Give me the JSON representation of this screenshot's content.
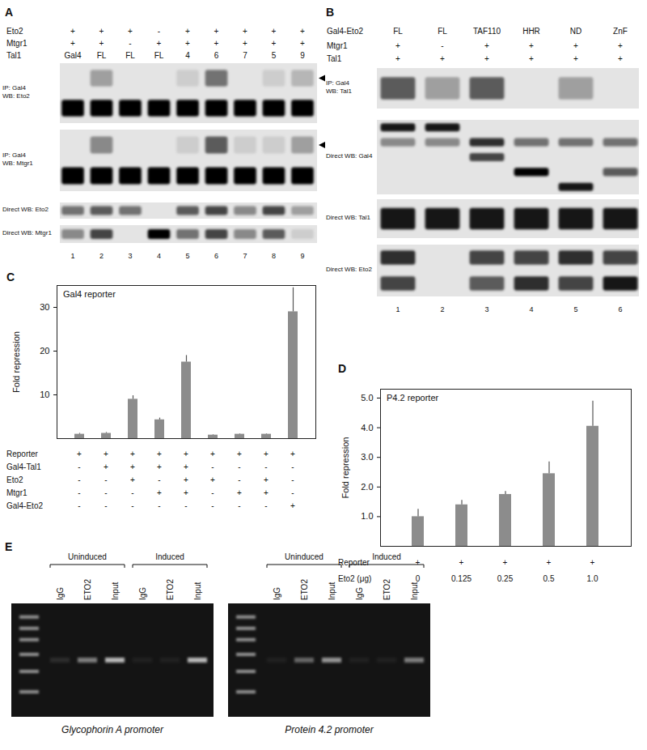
{
  "panels": {
    "A": {
      "letter": "A",
      "header": [
        {
          "label": "Eto2",
          "values": [
            "+",
            "+",
            "+",
            "-",
            "+",
            "+",
            "+",
            "+",
            "+"
          ]
        },
        {
          "label": "Mtgr1",
          "values": [
            "+",
            "+",
            "-",
            "+",
            "+",
            "+",
            "+",
            "+",
            "+"
          ]
        },
        {
          "label": "Tal1",
          "values": [
            "Gal4",
            "FL",
            "FL",
            "FL",
            "4",
            "6",
            "7",
            "5",
            "9"
          ]
        }
      ],
      "blots": [
        {
          "label": [
            "IP: Gal4",
            "WB: Eto2"
          ],
          "arrow": true,
          "bands": [
            [
              0,
              0.3,
              0,
              0,
              0.1,
              0.5,
              0,
              0.1,
              0.2
            ],
            [
              1,
              1,
              1,
              1,
              1,
              1,
              1,
              1,
              1
            ]
          ]
        },
        {
          "label": [
            "IP: Gal4",
            "WB: Mtgr1"
          ],
          "arrow": true,
          "bands": [
            [
              0,
              0.4,
              0,
              0,
              0.1,
              0.6,
              0.1,
              0.1,
              0.3
            ],
            [
              1,
              1,
              1,
              1,
              1,
              1,
              1,
              1,
              1
            ]
          ]
        },
        {
          "label": [
            "Direct WB: Eto2"
          ],
          "arrow": false,
          "bands": [
            [
              0.5,
              0.6,
              0.5,
              0,
              0.6,
              0.7,
              0.4,
              0.7,
              0.3
            ]
          ]
        },
        {
          "label": [
            "Direct WB: Mtgr1"
          ],
          "arrow": false,
          "bands": [
            [
              0.4,
              0.7,
              0,
              1,
              0.5,
              0.7,
              0.4,
              0.6,
              0.1
            ]
          ]
        }
      ],
      "lanes": [
        1,
        2,
        3,
        4,
        5,
        6,
        7,
        8,
        9
      ]
    },
    "B": {
      "letter": "B",
      "header": [
        {
          "label": "Gal4-Eto2",
          "values": [
            "FL",
            "FL",
            "TAF110",
            "HHR",
            "ND",
            "ZnF"
          ]
        },
        {
          "label": "Mtgr1",
          "values": [
            "+",
            "-",
            "+",
            "+",
            "+",
            "+"
          ]
        },
        {
          "label": "Tal1",
          "values": [
            "+",
            "+",
            "+",
            "+",
            "+",
            "+"
          ]
        }
      ],
      "blots": [
        {
          "label": [
            "IP: Gal4",
            "WB: Tal1"
          ],
          "arrow": false,
          "bands": [
            [
              0.6,
              0.3,
              0.6,
              0,
              0.3,
              0
            ]
          ]
        },
        {
          "label": [
            "Direct WB: Gal4"
          ],
          "arrow": false,
          "bands": [
            [
              0.9,
              0.9,
              0,
              0,
              0,
              0
            ],
            [
              0.4,
              0.4,
              0.8,
              0.5,
              0.5,
              0.5
            ],
            [
              0,
              0,
              0.7,
              0,
              0,
              0
            ],
            [
              0,
              0,
              0,
              1,
              0,
              0.6
            ],
            [
              0,
              0,
              0,
              0,
              0.9,
              0
            ]
          ]
        },
        {
          "label": [
            "Direct WB: Tal1"
          ],
          "arrow": false,
          "bands": [
            [
              0.9,
              0.9,
              0.9,
              0.9,
              0.9,
              0.9
            ]
          ]
        },
        {
          "label": [
            "Direct WB: Eto2"
          ],
          "arrow": false,
          "bands": [
            [
              0.8,
              0,
              0.7,
              0.7,
              0.8,
              0.7
            ],
            [
              0.7,
              0,
              0.6,
              0.8,
              0.7,
              0.9
            ]
          ]
        }
      ],
      "lanes": [
        1,
        2,
        3,
        4,
        5,
        6
      ]
    },
    "C": {
      "letter": "C",
      "rows": [
        {
          "label": "Reporter",
          "values": [
            "+",
            "+",
            "+",
            "+",
            "+",
            "+",
            "+",
            "+",
            "+"
          ]
        },
        {
          "label": "Gal4-Tal1",
          "values": [
            "-",
            "+",
            "+",
            "+",
            "+",
            "-",
            "-",
            "-",
            "-"
          ]
        },
        {
          "label": "Eto2",
          "values": [
            "-",
            "-",
            "+",
            "-",
            "+",
            "+",
            "-",
            "+",
            "-"
          ]
        },
        {
          "label": "Mtgr1",
          "values": [
            "-",
            "-",
            "-",
            "+",
            "+",
            "-",
            "+",
            "+",
            "-"
          ]
        },
        {
          "label": "Gal4-Eto2",
          "values": [
            "-",
            "-",
            "-",
            "-",
            "-",
            "-",
            "-",
            "-",
            "+"
          ]
        }
      ]
    },
    "D": {
      "letter": "D",
      "rows": [
        {
          "label": "Reporter",
          "values": [
            "+",
            "+",
            "+",
            "+",
            "+"
          ]
        },
        {
          "label": "Eto2 (μg)",
          "values": [
            "0",
            "0.125",
            "0.25",
            "0.5",
            "1.0"
          ]
        }
      ]
    },
    "E": {
      "letter": "E",
      "gels": [
        {
          "caption": "Glycophorin A promoter",
          "groups": [
            "Uninduced",
            "Induced"
          ],
          "lanes": [
            "IgG",
            "ETO2",
            "Input",
            "IgG",
            "ETO2",
            "Input"
          ],
          "bands": [
            0.1,
            0.45,
            0.7,
            0.05,
            0.05,
            0.7
          ]
        },
        {
          "caption": "Protein 4.2 promoter",
          "groups": [
            "Uninduced",
            "Induced"
          ],
          "lanes": [
            "IgG",
            "ETO2",
            "Input",
            "IgG",
            "ETO2",
            "Input"
          ],
          "bands": [
            0.05,
            0.35,
            0.55,
            0.05,
            0.05,
            0.45
          ]
        }
      ]
    }
  },
  "chart_data": [
    {
      "type": "bar",
      "title": "Gal4 reporter",
      "y_label": "Fold repression",
      "categories": [
        null,
        null,
        null,
        null,
        null,
        null,
        null,
        null,
        null
      ],
      "values": [
        1.0,
        1.2,
        9.0,
        4.3,
        17.5,
        0.8,
        1.0,
        1.0,
        29.0
      ],
      "errors": [
        0.2,
        0.2,
        0.8,
        0.4,
        1.5,
        0.1,
        0.1,
        0.1,
        5.5
      ],
      "color": "#8c8c8c",
      "ylim": [
        0,
        35
      ],
      "yticks": [
        10,
        20,
        30
      ],
      "grid": false,
      "tick_labels": "y"
    },
    {
      "type": "bar",
      "title": "P4.2 reporter",
      "y_label": "Fold repression",
      "categories": [
        null,
        null,
        null,
        null,
        null
      ],
      "values": [
        1.0,
        1.4,
        1.75,
        2.45,
        4.05
      ],
      "errors": [
        0.25,
        0.15,
        0.1,
        0.4,
        0.85
      ],
      "color": "#8c8c8c",
      "ylim": [
        0,
        5.3
      ],
      "yticks": [
        1,
        2,
        3,
        4,
        5
      ],
      "grid": false,
      "tick_labels": "y"
    }
  ]
}
